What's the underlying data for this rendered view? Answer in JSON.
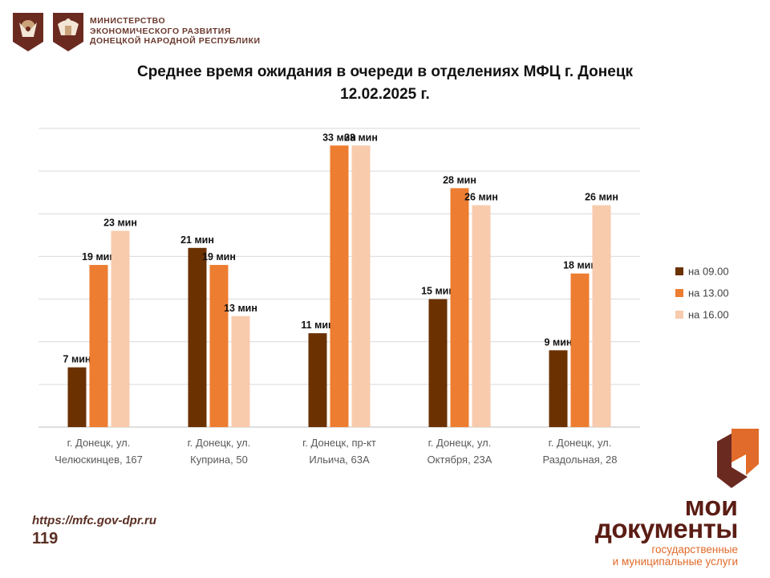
{
  "header": {
    "ministry_lines": [
      "МИНИСТЕРСТВО",
      "ЭКОНОМИЧЕСКОГО РАЗВИТИЯ",
      "ДОНЕЦКОЙ НАРОДНОЙ РЕСПУБЛИКИ"
    ],
    "emblem_icons": [
      "russian-coat-of-arms-icon",
      "dpr-coat-of-arms-icon"
    ]
  },
  "chart_data": {
    "type": "bar",
    "title": "Среднее время ожидания в очереди в отделениях МФЦ г. Донецк",
    "subtitle": "12.02.2025 г.",
    "categories": [
      [
        "г. Донецк, ул.",
        "Челюскинцев, 167"
      ],
      [
        "г. Донецк, ул.",
        "Куприна, 50"
      ],
      [
        "г. Донецк, пр-кт",
        "Ильича, 63А"
      ],
      [
        "г. Донецк, ул.",
        "Октября, 23А"
      ],
      [
        "г. Донецк, ул.",
        "Раздольная, 28"
      ]
    ],
    "series": [
      {
        "name": "на 09.00",
        "values": [
          7,
          21,
          11,
          15,
          9
        ],
        "color": "#6b3100"
      },
      {
        "name": "на 13.00",
        "values": [
          19,
          19,
          33,
          28,
          18
        ],
        "color": "#ed7d31"
      },
      {
        "name": "на 16.00",
        "values": [
          23,
          13,
          33,
          26,
          26
        ],
        "color": "#f8cbad"
      }
    ],
    "value_suffix": " мин",
    "ylim": [
      0,
      35
    ],
    "grid": true,
    "legend_position": "right",
    "xlabel": "",
    "ylabel": ""
  },
  "footer": {
    "url": "https://mfc.gov-dpr.ru",
    "page_number": "119"
  },
  "logo": {
    "line1": "мои",
    "line2": "документы",
    "tagline1": "государственные",
    "tagline2": "и муниципальные услуги",
    "colors": {
      "brown": "#5b1d14",
      "orange": "#e06b2a"
    }
  }
}
